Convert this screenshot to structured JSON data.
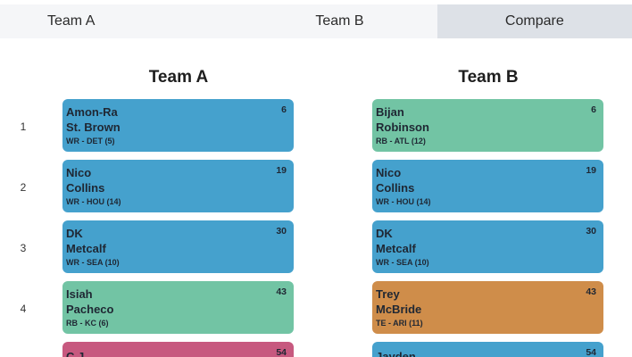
{
  "tabs": [
    {
      "label": "Team A"
    },
    {
      "label": "Team B"
    },
    {
      "label": "Compare"
    }
  ],
  "teamA": {
    "title": "Team A",
    "picks": [
      {
        "name1": "Amon-Ra",
        "name2": "St. Brown",
        "meta": "WR - DET (5)",
        "pick": "6"
      },
      {
        "name1": "Nico",
        "name2": "Collins",
        "meta": "WR - HOU (14)",
        "pick": "19"
      },
      {
        "name1": "DK",
        "name2": "Metcalf",
        "meta": "WR - SEA (10)",
        "pick": "30"
      },
      {
        "name1": "Isiah",
        "name2": "Pacheco",
        "meta": "RB - KC (6)",
        "pick": "43"
      },
      {
        "name1": "C.J.",
        "name2": "",
        "meta": "",
        "pick": "54"
      }
    ]
  },
  "teamB": {
    "title": "Team B",
    "picks": [
      {
        "name1": "Bijan",
        "name2": "Robinson",
        "meta": "RB - ATL (12)",
        "pick": "6"
      },
      {
        "name1": "Nico",
        "name2": "Collins",
        "meta": "WR - HOU (14)",
        "pick": "19"
      },
      {
        "name1": "DK",
        "name2": "Metcalf",
        "meta": "WR - SEA (10)",
        "pick": "30"
      },
      {
        "name1": "Trey",
        "name2": "McBride",
        "meta": "TE - ARI (11)",
        "pick": "43"
      },
      {
        "name1": "Jayden",
        "name2": "",
        "meta": "",
        "pick": "54"
      }
    ]
  },
  "rounds": [
    "1",
    "2",
    "3",
    "4"
  ],
  "colors": {
    "WR": "#45a1cd",
    "RB": "#72c4a4",
    "TE": "#cf8d4a",
    "QB": "#c7597f",
    "active_tab": "#dde1e7"
  }
}
